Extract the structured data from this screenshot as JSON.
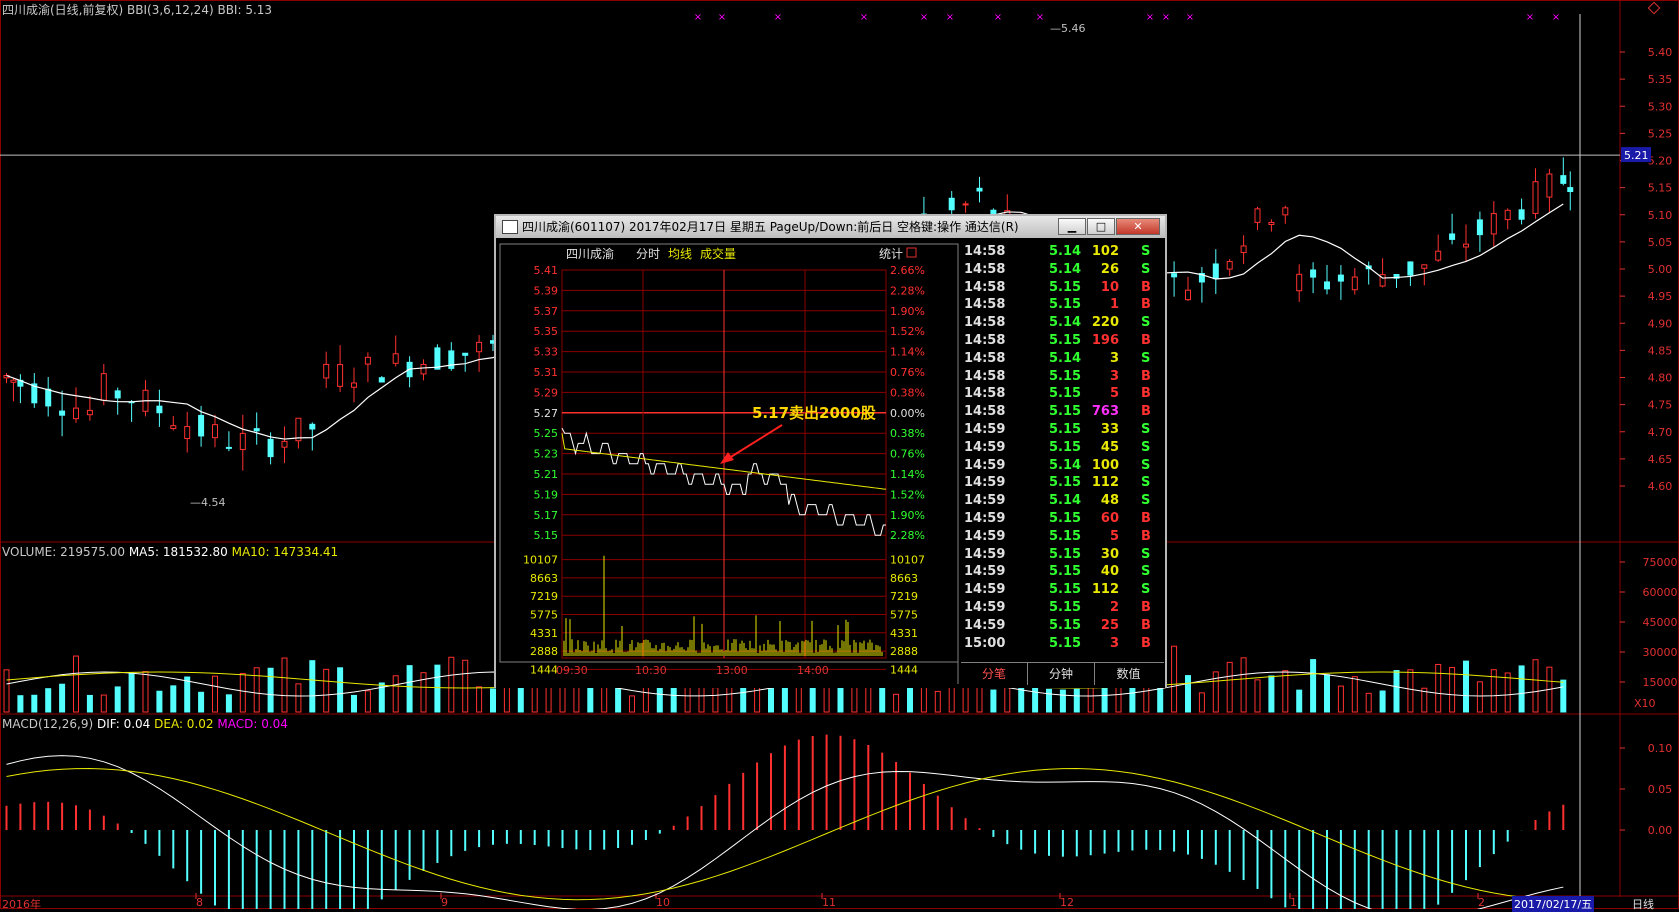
{
  "main_header": {
    "title": "四川成渝(日线,前复权)",
    "indicator": "BBI(3,6,12,24)",
    "bbi_value": "BBI: 5.13",
    "high_label": "5.46",
    "low_label": "4.54",
    "current_price_tag": "5.21"
  },
  "price_axis": [
    "5.40",
    "5.35",
    "5.30",
    "5.25",
    "5.20",
    "5.15",
    "5.10",
    "5.05",
    "5.00",
    "4.95",
    "4.90",
    "4.85",
    "4.80",
    "4.75",
    "4.70",
    "4.65",
    "4.60"
  ],
  "volume_header": {
    "label": "VOLUME: 219575.00",
    "ma5": "MA5: 181532.80",
    "ma10": "MA10: 147334.41"
  },
  "volume_axis": [
    "75000",
    "60000",
    "45000",
    "30000",
    "15000"
  ],
  "volume_unit": "X10",
  "macd_header": {
    "label": "MACD(12,26,9)",
    "dif": "DIF: 0.04",
    "dea": "DEA: 0.02",
    "macd": "MACD: 0.04"
  },
  "macd_axis": [
    "0.10",
    "0.05",
    "0.00"
  ],
  "date_axis": {
    "labels": [
      "2016年",
      "8",
      "9",
      "10",
      "11",
      "12",
      "1",
      "2"
    ],
    "current": "2017/02/17/五",
    "period": "日线"
  },
  "colors": {
    "up": "#ff3030",
    "down": "#54ffff",
    "grid": "#8b0000",
    "ma5": "#ffffff",
    "ma10": "#e8e800",
    "macd": "#ff00ff"
  },
  "dialog": {
    "title": "四川成渝(601107) 2017年02月17日 星期五 PageUp/Down:前后日 空格键:操作 通达信(R)",
    "minimize": "▁",
    "maximize": "□",
    "close": "✕",
    "chart_header": {
      "stock": "四川成渝",
      "tab_minute": "分时",
      "legend_avg": "均线",
      "legend_vol": "成交量",
      "stats": "统计"
    },
    "price_labels": [
      "5.41",
      "5.39",
      "5.37",
      "5.35",
      "5.33",
      "5.31",
      "5.29",
      "5.27",
      "5.25",
      "5.23",
      "5.21",
      "5.19",
      "5.17",
      "5.15"
    ],
    "pct_labels": [
      "2.66%",
      "2.28%",
      "1.90%",
      "1.52%",
      "1.14%",
      "0.76%",
      "0.38%",
      "0.00%",
      "0.38%",
      "0.76%",
      "1.14%",
      "1.52%",
      "1.90%",
      "2.28%"
    ],
    "vol_labels": [
      "10107",
      "8663",
      "7219",
      "5775",
      "4331",
      "2888",
      "1444"
    ],
    "time_labels": [
      "09:30",
      "10:30",
      "13:00",
      "14:00"
    ],
    "annotation": "5.17卖出2000股",
    "tabs": [
      "分笔",
      "分钟",
      "数值"
    ],
    "ticks": [
      {
        "t": "14:58",
        "p": "5.14",
        "v": "102",
        "s": "S"
      },
      {
        "t": "14:58",
        "p": "5.14",
        "v": "26",
        "s": "S"
      },
      {
        "t": "14:58",
        "p": "5.15",
        "v": "10",
        "s": "B"
      },
      {
        "t": "14:58",
        "p": "5.15",
        "v": "1",
        "s": "B"
      },
      {
        "t": "14:58",
        "p": "5.14",
        "v": "220",
        "s": "S"
      },
      {
        "t": "14:58",
        "p": "5.15",
        "v": "196",
        "s": "B"
      },
      {
        "t": "14:58",
        "p": "5.14",
        "v": "3",
        "s": "S"
      },
      {
        "t": "14:58",
        "p": "5.15",
        "v": "3",
        "s": "B"
      },
      {
        "t": "14:58",
        "p": "5.15",
        "v": "5",
        "s": "B"
      },
      {
        "t": "14:58",
        "p": "5.15",
        "v": "763",
        "s": "B"
      },
      {
        "t": "14:59",
        "p": "5.15",
        "v": "33",
        "s": "S"
      },
      {
        "t": "14:59",
        "p": "5.15",
        "v": "45",
        "s": "S"
      },
      {
        "t": "14:59",
        "p": "5.14",
        "v": "100",
        "s": "S"
      },
      {
        "t": "14:59",
        "p": "5.15",
        "v": "112",
        "s": "S"
      },
      {
        "t": "14:59",
        "p": "5.14",
        "v": "48",
        "s": "S"
      },
      {
        "t": "14:59",
        "p": "5.15",
        "v": "60",
        "s": "B"
      },
      {
        "t": "14:59",
        "p": "5.15",
        "v": "5",
        "s": "B"
      },
      {
        "t": "14:59",
        "p": "5.15",
        "v": "30",
        "s": "S"
      },
      {
        "t": "14:59",
        "p": "5.15",
        "v": "40",
        "s": "S"
      },
      {
        "t": "14:59",
        "p": "5.15",
        "v": "112",
        "s": "S"
      },
      {
        "t": "14:59",
        "p": "5.15",
        "v": "2",
        "s": "B"
      },
      {
        "t": "14:59",
        "p": "5.15",
        "v": "25",
        "s": "B"
      },
      {
        "t": "15:00",
        "p": "5.15",
        "v": "3",
        "s": "B"
      }
    ]
  }
}
